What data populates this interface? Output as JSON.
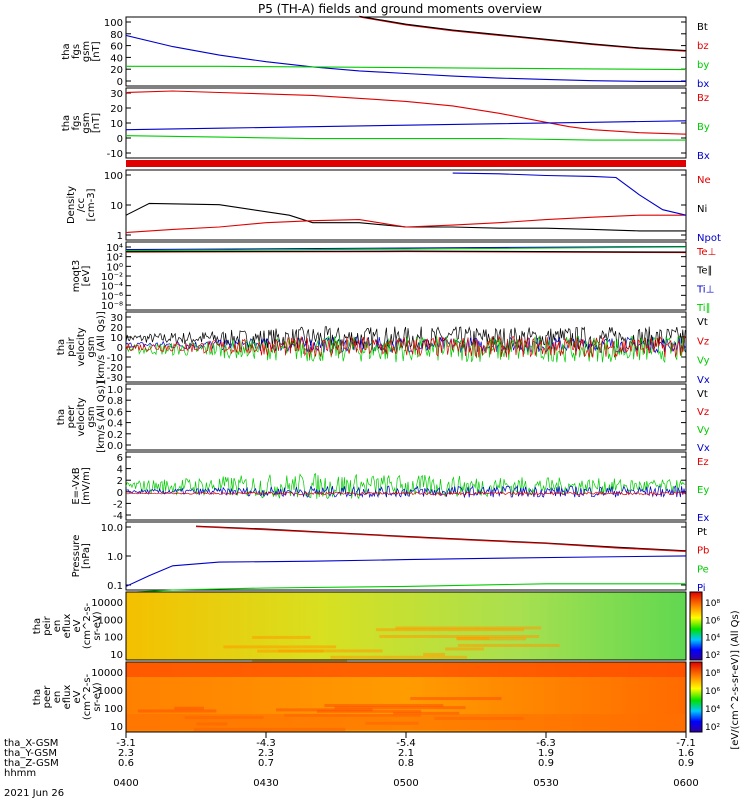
{
  "title": "P5 (TH-A) fields and ground moments overview",
  "colors": {
    "black": "#000000",
    "red": "#e00000",
    "green": "#00cc00",
    "blue": "#0000cc"
  },
  "chart_data": {
    "type": "line",
    "x_time_ticks": [
      "0400",
      "0430",
      "0500",
      "0530",
      "0600"
    ],
    "date": "2021 Jun 26",
    "ephemeris": [
      {
        "label": "tha_X-GSM",
        "values": [
          "-3.1",
          "-4.3",
          "-5.4",
          "-6.3",
          "-7.1"
        ]
      },
      {
        "label": "tha_Y-GSM",
        "values": [
          "2.3",
          "2.3",
          "2.1",
          "1.9",
          "1.6"
        ]
      },
      {
        "label": "tha_Z-GSM",
        "values": [
          "0.6",
          "0.7",
          "0.8",
          "0.9",
          "0.9"
        ]
      },
      {
        "label": "hhmm",
        "values": []
      }
    ],
    "panels": [
      {
        "ylabel": [
          "tha",
          "fgs",
          "gsm",
          "[nT]"
        ],
        "ticks": [
          "100",
          "80",
          "60",
          "40",
          "20",
          "0"
        ],
        "legend": [
          {
            "name": "Bt",
            "color": "#000000"
          },
          {
            "name": "bz",
            "color": "#e00000"
          },
          {
            "name": "by",
            "color": "#00cc00"
          },
          {
            "name": "bx",
            "color": "#0000cc"
          }
        ],
        "ylim": [
          -5,
          100
        ],
        "series": [
          {
            "color": "#0000cc",
            "x": [
              0,
              10,
              20,
              30,
              40,
              50,
              60,
              70,
              80,
              90,
              100,
              110,
              120
            ],
            "y": [
              72,
              55,
              42,
              32,
              24,
              18,
              14,
              10,
              7,
              5,
              3,
              2,
              2
            ]
          },
          {
            "color": "#00cc00",
            "x": [
              0,
              20,
              40,
              60,
              80,
              100,
              120
            ],
            "y": [
              25,
              25,
              24,
              23,
              22,
              21,
              20
            ]
          },
          {
            "color": "#e00000",
            "x": [
              50,
              60,
              70,
              80,
              90,
              100,
              110,
              120
            ],
            "y": [
              100,
              88,
              79,
              72,
              65,
              58,
              52,
              48
            ]
          },
          {
            "color": "#000000",
            "x": [
              50,
              60,
              70,
              80,
              90,
              100,
              110,
              120
            ],
            "y": [
              101,
              89,
              80,
              73,
              66,
              59,
              53,
              49
            ]
          }
        ]
      },
      {
        "ylabel": [
          "tha",
          "fgs",
          "gsm",
          "[nT]"
        ],
        "ticks": [
          "30",
          "20",
          "10",
          "0",
          "-10"
        ],
        "legend": [
          {
            "name": "Bz",
            "color": "#e00000"
          },
          {
            "name": "By",
            "color": "#00cc00"
          },
          {
            "name": "Bx",
            "color": "#0000cc"
          }
        ],
        "ylim": [
          -15,
          32
        ],
        "series": [
          {
            "color": "#e00000",
            "x": [
              0,
              10,
              20,
              40,
              60,
              70,
              80,
              90,
              95,
              100,
              110,
              120
            ],
            "y": [
              29,
              30,
              29,
              27,
              23,
              20,
              15,
              9,
              6,
              4,
              2,
              1
            ]
          },
          {
            "color": "#00cc00",
            "x": [
              0,
              20,
              40,
              60,
              80,
              100,
              120
            ],
            "y": [
              0,
              -1,
              -2,
              -2,
              -2,
              -3,
              -3
            ]
          },
          {
            "color": "#0000cc",
            "x": [
              0,
              20,
              40,
              60,
              80,
              100,
              120
            ],
            "y": [
              4,
              5,
              6,
              7,
              8,
              9,
              10
            ]
          }
        ]
      },
      {
        "ylabel": [
          "Density",
          "/cc",
          "[cm-3]"
        ],
        "ticks": [
          "100",
          "10",
          "1"
        ],
        "legend": [
          {
            "name": "Ne",
            "color": "#e00000"
          },
          {
            "name": "Ni",
            "color": "#000000"
          },
          {
            "name": "Npot",
            "color": "#0000cc"
          }
        ],
        "ylim": [
          0.3,
          200
        ],
        "log": true,
        "series": [
          {
            "color": "#000000",
            "x": [
              0,
              5,
              20,
              35,
              40,
              50,
              60,
              70,
              80,
              90,
              100,
              110,
              120
            ],
            "y": [
              3,
              9,
              8,
              3,
              1.5,
              1.5,
              1,
              1,
              0.9,
              0.9,
              0.8,
              0.7,
              0.7
            ]
          },
          {
            "color": "#e00000",
            "x": [
              0,
              10,
              20,
              30,
              40,
              50,
              60,
              70,
              80,
              90,
              100,
              110,
              120
            ],
            "y": [
              0.6,
              0.8,
              1,
              1.5,
              1.8,
              2,
              1,
              1.2,
              1.5,
              2,
              2.5,
              3,
              3
            ]
          },
          {
            "color": "#0000cc",
            "x": [
              70,
              80,
              90,
              100,
              105,
              110,
              115,
              120
            ],
            "y": [
              150,
              140,
              120,
              110,
              100,
              20,
              5,
              3
            ]
          }
        ]
      },
      {
        "ylabel": [
          "moqt3",
          "[eV]"
        ],
        "ticks": [
          "10⁴",
          "10²",
          "10⁰",
          "10⁻²",
          "10⁻⁴",
          "10⁻⁶",
          "10⁻⁸"
        ],
        "legend": [
          {
            "name": "Te⊥",
            "color": "#e00000"
          },
          {
            "name": "Te∥",
            "color": "#000000"
          },
          {
            "name": "Ti⊥",
            "color": "#0000cc"
          },
          {
            "name": "Ti∥",
            "color": "#00cc00"
          }
        ],
        "ylim": [
          -9,
          4.5
        ],
        "series": [
          {
            "color": "#0000cc",
            "x": [
              0,
              60,
              120
            ],
            "y": [
              3,
              3.3,
              3.6
            ]
          },
          {
            "color": "#00cc00",
            "x": [
              0,
              60,
              120
            ],
            "y": [
              2.8,
              3.1,
              3.5
            ]
          },
          {
            "color": "#e00000",
            "x": [
              0,
              60,
              120
            ],
            "y": [
              2.5,
              2.6,
              2.4
            ]
          },
          {
            "color": "#000000",
            "x": [
              0,
              60,
              120
            ],
            "y": [
              2.6,
              2.7,
              2.5
            ]
          }
        ]
      },
      {
        "ylabel": [
          "tha",
          "peir",
          "velocity",
          "gsm",
          "[km/s (All Qs)]"
        ],
        "ticks": [
          "30",
          "20",
          "10",
          "0",
          "-10",
          "-20",
          "-30"
        ],
        "legend": [
          {
            "name": "Vt",
            "color": "#000000"
          },
          {
            "name": "Vz",
            "color": "#e00000"
          },
          {
            "name": "Vy",
            "color": "#00cc00"
          },
          {
            "name": "Vx",
            "color": "#0000cc"
          }
        ],
        "ylim": [
          -32,
          32
        ],
        "noisy": true,
        "series": [
          {
            "color": "#000000",
            "center": 8,
            "amp": 9
          },
          {
            "color": "#0000cc",
            "center": 2,
            "amp": 6
          },
          {
            "color": "#00cc00",
            "center": -2,
            "amp": 10
          },
          {
            "color": "#e00000",
            "center": 0,
            "amp": 8
          }
        ]
      },
      {
        "ylabel": [
          "tha",
          "peer",
          "velocity",
          "gsm",
          "[km/s (All Qs)]"
        ],
        "ticks": [
          "1.0",
          "0.8",
          "0.6",
          "0.4",
          "0.2",
          "0.0"
        ],
        "legend": [
          {
            "name": "Vt",
            "color": "#000000"
          },
          {
            "name": "Vz",
            "color": "#e00000"
          },
          {
            "name": "Vy",
            "color": "#00cc00"
          },
          {
            "name": "Vx",
            "color": "#0000cc"
          }
        ],
        "ylim": [
          0,
          1
        ],
        "series": []
      },
      {
        "ylabel": [
          "E=-VxB",
          "[mV/m]"
        ],
        "ticks": [
          "6",
          "4",
          "2",
          "0",
          "-2",
          "-4"
        ],
        "legend": [
          {
            "name": "Ez",
            "color": "#e00000"
          },
          {
            "name": "Ey",
            "color": "#00cc00"
          },
          {
            "name": "Ex",
            "color": "#0000cc"
          }
        ],
        "ylim": [
          -4.5,
          7
        ],
        "noisy": true,
        "series": [
          {
            "color": "#00cc00",
            "center": 1.2,
            "amp": 1.5,
            "decay": true
          },
          {
            "color": "#0000cc",
            "center": 0.3,
            "amp": 0.8
          },
          {
            "color": "#e00000",
            "center": 0,
            "amp": 0.2
          }
        ]
      },
      {
        "ylabel": [
          "Pressure",
          "[nPa]"
        ],
        "ticks": [
          "10.0",
          "1.0",
          "0.1"
        ],
        "legend": [
          {
            "name": "Pt",
            "color": "#000000"
          },
          {
            "name": "Pb",
            "color": "#e00000"
          },
          {
            "name": "Pe",
            "color": "#00cc00"
          },
          {
            "name": "Pi",
            "color": "#0000cc"
          }
        ],
        "ylim": [
          0.02,
          40
        ],
        "log": true,
        "series": [
          {
            "color": "#000000",
            "x": [
              15,
              30,
              45,
              60,
              75,
              90,
              105,
              120
            ],
            "y": [
              25,
              18,
              12,
              8,
              5.5,
              3.8,
              2.4,
              1.6
            ]
          },
          {
            "color": "#e00000",
            "x": [
              15,
              30,
              45,
              60,
              75,
              90,
              105,
              120
            ],
            "y": [
              24,
              17,
              11.5,
              7.6,
              5.2,
              3.6,
              2.2,
              1.5
            ]
          },
          {
            "color": "#0000cc",
            "x": [
              0,
              5,
              10,
              20,
              40,
              60,
              80,
              100,
              120
            ],
            "y": [
              0.03,
              0.1,
              0.3,
              0.45,
              0.5,
              0.6,
              0.7,
              0.8,
              0.9
            ]
          },
          {
            "color": "#00cc00",
            "x": [
              0,
              10,
              30,
              60,
              90,
              120
            ],
            "y": [
              0.015,
              0.02,
              0.025,
              0.03,
              0.04,
              0.04
            ]
          }
        ]
      }
    ],
    "spectrograms": [
      {
        "ylabel": [
          "tha",
          "peir",
          "en",
          "eflux",
          "eV",
          "(cm^2-s-",
          "sr-eV)"
        ],
        "ticks": [
          "10000",
          "1000",
          "100",
          "10"
        ],
        "colorbar_ticks": [
          "10⁸",
          "10⁶",
          "10⁴",
          "10²"
        ]
      },
      {
        "ylabel": [
          "tha",
          "peer",
          "en",
          "eflux",
          "eV",
          "(cm^2-s-",
          "sr-eV)"
        ],
        "ticks": [
          "10000",
          "1000",
          "100",
          "10"
        ],
        "colorbar_ticks": [
          "10⁸",
          "10⁶",
          "10⁴",
          "10²"
        ]
      }
    ],
    "colorbar_label": "[eV/(cm^2-s-sr-eV)] (All Qs)"
  }
}
